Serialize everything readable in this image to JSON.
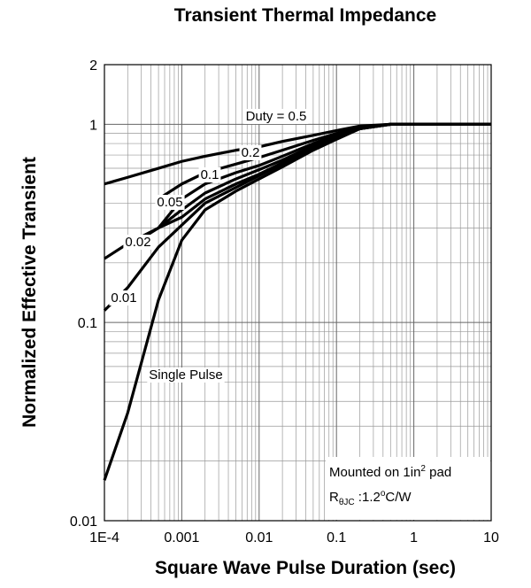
{
  "chart_data": {
    "type": "line",
    "title": "Transient Thermal Impedance",
    "x_label": "Square Wave Pulse Duration (sec)",
    "y_label": "Normalized Effective Transient",
    "x_log": true,
    "y_log": true,
    "grid": true,
    "minor_grid": true,
    "x": [
      0.0001,
      0.0002,
      0.0005,
      0.001,
      0.002,
      0.005,
      0.01,
      0.02,
      0.05,
      0.1,
      0.2,
      0.5,
      1,
      10
    ],
    "xlim": [
      0.0001,
      10
    ],
    "xticks": [
      {
        "value": 0.0001,
        "label": "1E-4"
      },
      0.001,
      0.01,
      0.1,
      1,
      10
    ],
    "ylim": [
      0.01,
      2
    ],
    "yticks": [
      0.01,
      0.1,
      1,
      2
    ],
    "series": [
      {
        "name": "Duty = 0.5",
        "color": "#000000",
        "values": [
          0.5,
          0.54,
          0.6,
          0.65,
          0.69,
          0.74,
          0.77,
          0.82,
          0.88,
          0.93,
          0.98,
          1,
          1,
          1
        ]
      },
      {
        "name": "0.2",
        "color": "#000000",
        "values": [
          null,
          null,
          0.42,
          0.5,
          0.57,
          0.63,
          0.68,
          0.74,
          0.83,
          0.9,
          0.97,
          1,
          1,
          1
        ]
      },
      {
        "name": "0.1",
        "color": "#000000",
        "values": [
          null,
          null,
          0.3,
          0.42,
          0.5,
          0.57,
          0.62,
          0.69,
          0.8,
          0.88,
          0.96,
          1,
          1,
          1
        ]
      },
      {
        "name": "0.05",
        "color": "#000000",
        "values": [
          null,
          0.24,
          0.3,
          0.37,
          0.45,
          0.53,
          0.59,
          0.66,
          0.78,
          0.87,
          0.96,
          1,
          1,
          1
        ]
      },
      {
        "name": "0.02",
        "color": "#000000",
        "values": [
          0.21,
          0.25,
          0.3,
          0.34,
          0.42,
          0.5,
          0.56,
          0.64,
          0.76,
          0.86,
          0.95,
          1,
          1,
          1
        ]
      },
      {
        "name": "0.01",
        "color": "#000000",
        "values": [
          0.115,
          0.15,
          0.24,
          0.31,
          0.4,
          0.48,
          0.55,
          0.63,
          0.75,
          0.85,
          0.95,
          1,
          1,
          1
        ]
      },
      {
        "name": "Single Pulse",
        "color": "#000000",
        "values": [
          0.016,
          0.035,
          0.13,
          0.26,
          0.37,
          0.46,
          0.53,
          0.61,
          0.74,
          0.84,
          0.95,
          1,
          1,
          1
        ]
      }
    ],
    "note": {
      "line1": {
        "text": "Mounted on 1in",
        "sup": "2",
        "rest": " pad"
      },
      "line2": {
        "text": "R",
        "sub": "θJC",
        "mid": " :1.2",
        "sup": "o",
        "rest": "C/W"
      }
    }
  }
}
